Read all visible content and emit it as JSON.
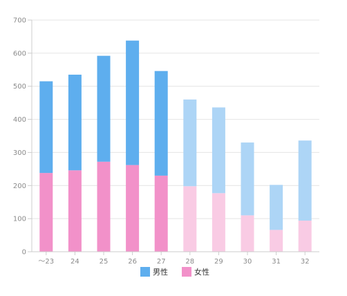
{
  "chart_data": {
    "type": "bar",
    "stacked": true,
    "categories": [
      "～23",
      "24",
      "25",
      "26",
      "27",
      "28",
      "29",
      "30",
      "31",
      "32"
    ],
    "series": [
      {
        "name": "女性",
        "values": [
          238,
          246,
          272,
          262,
          230,
          198,
          177,
          110,
          66,
          94
        ],
        "color": "#f291c9",
        "faded_color": "#f9cbe4"
      },
      {
        "name": "男性",
        "values": [
          277,
          289,
          320,
          376,
          316,
          262,
          259,
          220,
          136,
          242
        ],
        "color": "#5eaeee",
        "faded_color": "#add5f6"
      }
    ],
    "faded_from_index": 5,
    "yticks": [
      0,
      100,
      200,
      300,
      400,
      500,
      600,
      700
    ],
    "ylim": [
      0,
      700
    ],
    "grid": true,
    "legend": {
      "position": "bottom",
      "order": [
        "男性",
        "女性"
      ]
    },
    "colors": {
      "grid": "#e4e4e4",
      "axis": "#cccccc",
      "tick_text": "#8a8a8a"
    }
  }
}
